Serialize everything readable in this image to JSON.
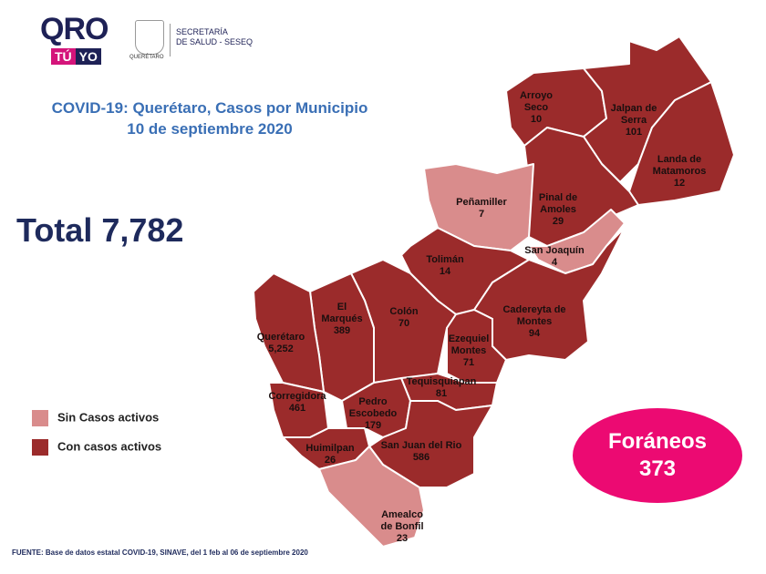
{
  "header": {
    "logo_qro": "QRO",
    "logo_tu": "TÚ",
    "logo_yo": "YO",
    "seal_text": "QUERÉTARO",
    "secretaria": "SECRETARÍA",
    "secretaria_sub": "DE SALUD - SESEQ"
  },
  "title": {
    "line1": "COVID-19: Querétaro, Casos por Municipio",
    "line2": "10 de septiembre 2020"
  },
  "total": "Total 7,782",
  "colors": {
    "active": "#9b2b2b",
    "no_active": "#d98c8c",
    "foraneos": "#ec0a72",
    "title": "#3a6fb5"
  },
  "legend": [
    {
      "label": "Sin Casos activos",
      "color": "#d98c8c"
    },
    {
      "label": "Con casos activos",
      "color": "#9b2b2b"
    }
  ],
  "foraneos": {
    "label": "Foráneos",
    "value": "373"
  },
  "municipios": [
    {
      "name": [
        "Arroyo",
        "Seco"
      ],
      "cases": "10",
      "active": true
    },
    {
      "name": [
        "Jalpan de",
        "Serra"
      ],
      "cases": "101",
      "active": true
    },
    {
      "name": [
        "Landa de",
        "Matamoros"
      ],
      "cases": "12",
      "active": true
    },
    {
      "name": [
        "Pinal de",
        "Amoles"
      ],
      "cases": "29",
      "active": true
    },
    {
      "name": [
        "Peñamiller"
      ],
      "cases": "7",
      "active": false
    },
    {
      "name": [
        "San Joaquín"
      ],
      "cases": "4",
      "active": false
    },
    {
      "name": [
        "Tolimán"
      ],
      "cases": "14",
      "active": true
    },
    {
      "name": [
        "Cadereyta de",
        "Montes"
      ],
      "cases": "94",
      "active": true
    },
    {
      "name": [
        "Colón"
      ],
      "cases": "70",
      "active": true
    },
    {
      "name": [
        "El",
        "Marqués"
      ],
      "cases": "389",
      "active": true
    },
    {
      "name": [
        "Querétaro"
      ],
      "cases": "5,252",
      "active": true
    },
    {
      "name": [
        "Corregidora"
      ],
      "cases": "461",
      "active": true
    },
    {
      "name": [
        "Ezequiel",
        "Montes"
      ],
      "cases": "71",
      "active": true
    },
    {
      "name": [
        "Tequisquiapan"
      ],
      "cases": "81",
      "active": true
    },
    {
      "name": [
        "Pedro",
        "Escobedo"
      ],
      "cases": "179",
      "active": true
    },
    {
      "name": [
        "Huimilpan"
      ],
      "cases": "26",
      "active": true
    },
    {
      "name": [
        "San Juan del Rio"
      ],
      "cases": "586",
      "active": true
    },
    {
      "name": [
        "Amealco",
        "de Bonfil"
      ],
      "cases": "23",
      "active": false
    }
  ],
  "source": "FUENTE:  Base de datos estatal COVID-19,  SINAVE,  del 1 feb al 06 de septiembre 2020"
}
